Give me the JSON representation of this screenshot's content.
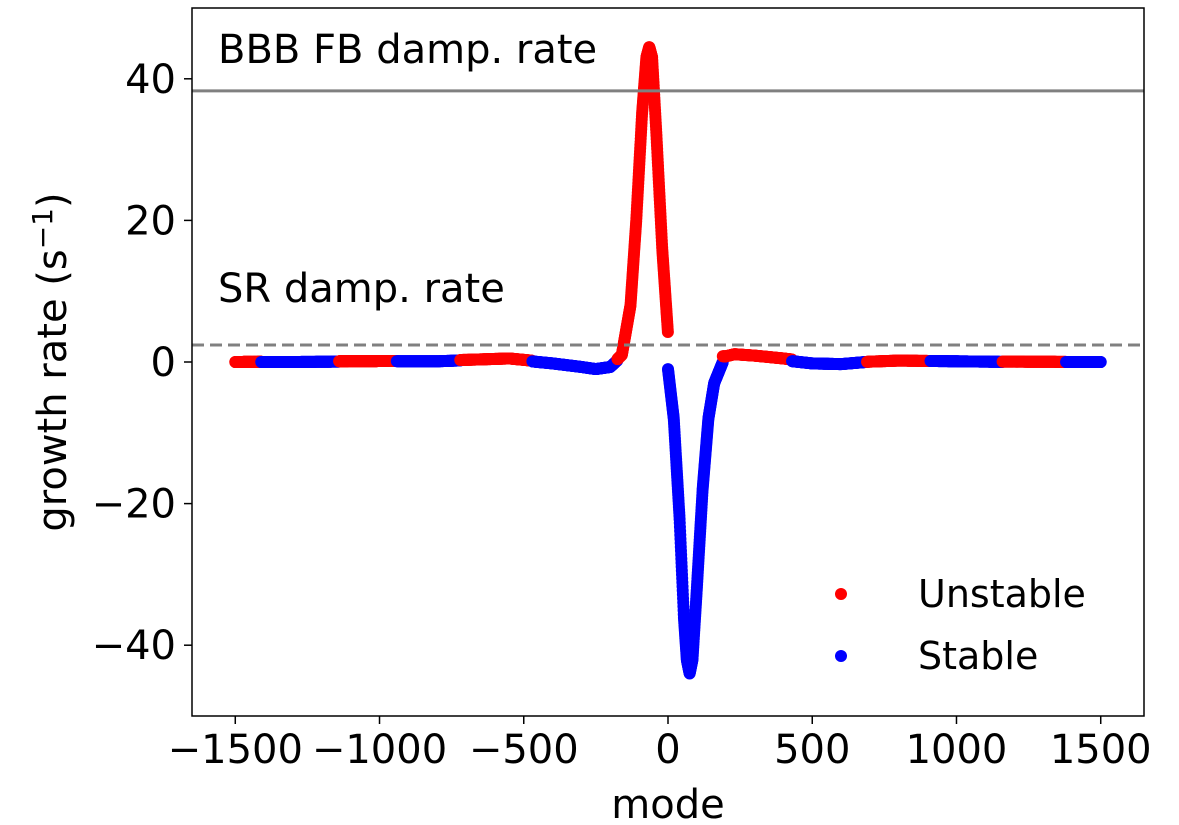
{
  "chart_data": {
    "type": "scatter",
    "xlabel": "mode",
    "ylabel": "growth rate (s",
    "ylabel_sup": "−1",
    "ylabel_close": ")",
    "xlim": [
      -1650,
      1650
    ],
    "ylim": [
      -50,
      50
    ],
    "x_ticks": [
      -1500,
      -1000,
      -500,
      0,
      500,
      1000,
      1500
    ],
    "x_tick_labels": [
      "−1500",
      "−1000",
      "−500",
      "0",
      "500",
      "1000",
      "1500"
    ],
    "y_ticks": [
      -40,
      -20,
      0,
      20,
      40
    ],
    "y_tick_labels": [
      "−40",
      "−20",
      "0",
      "20",
      "40"
    ],
    "grid": false,
    "legend_position": "bottom-right",
    "reference_lines": [
      {
        "y": 38.3,
        "style": "solid",
        "color": "#808080"
      },
      {
        "y": 2.4,
        "style": "dashed",
        "color": "#808080"
      }
    ],
    "annotations": [
      {
        "text": "BBB FB damp. rate",
        "x": -1550,
        "y": 44.5
      },
      {
        "text": "SR damp. rate",
        "x": -1550,
        "y": 10
      }
    ],
    "series": [
      {
        "name": "Unstable",
        "color": "#ff0000",
        "x_range": [
          -1500,
          1500
        ],
        "points_x": [
          -1500,
          -1200,
          -900,
          -700,
          -550,
          -450,
          -350,
          -250,
          -200,
          -160,
          -130,
          -110,
          -90,
          -75,
          -65,
          -55,
          -40,
          -20,
          0,
          20,
          200,
          230,
          300,
          400,
          500,
          600,
          700,
          800,
          900,
          1000,
          1200,
          1500
        ],
        "points_y": [
          0.0,
          0.1,
          0.15,
          0.3,
          0.5,
          0.1,
          -0.3,
          -0.8,
          -0.6,
          1.0,
          8.0,
          20.0,
          35.0,
          43.0,
          44.5,
          43.0,
          32.0,
          16.0,
          4.0,
          1.0,
          0.8,
          1.1,
          0.9,
          0.5,
          0.0,
          -0.2,
          0.05,
          0.2,
          0.15,
          0.1,
          0.05,
          0.0
        ]
      },
      {
        "name": "Stable",
        "color": "#0000ff",
        "x_range": [
          -1500,
          1500
        ],
        "points_x": [
          -1500,
          -1300,
          -1000,
          -800,
          -600,
          -500,
          -400,
          -300,
          -250,
          -200,
          -160,
          0,
          20,
          40,
          55,
          65,
          75,
          85,
          100,
          120,
          140,
          160,
          190,
          300,
          500,
          600,
          700,
          900,
          1200,
          1500
        ],
        "points_y": [
          0.0,
          0.0,
          0.1,
          0.1,
          0.4,
          0.2,
          -0.2,
          -0.7,
          -1.0,
          -0.7,
          0.8,
          -1.0,
          -8.0,
          -22.0,
          -36.0,
          -42.0,
          -44.0,
          -42.0,
          -32.0,
          -18.0,
          -8.0,
          -3.0,
          0.0,
          0.7,
          -0.2,
          -0.3,
          0.05,
          0.15,
          0.0,
          0.0
        ]
      }
    ],
    "segments": [
      {
        "series": "Unstable",
        "from": -1500,
        "to": -1410
      },
      {
        "series": "Stable",
        "from": -1410,
        "to": -1140
      },
      {
        "series": "Unstable",
        "from": -1140,
        "to": -940
      },
      {
        "series": "Stable",
        "from": -940,
        "to": -720
      },
      {
        "series": "Unstable",
        "from": -720,
        "to": -470
      },
      {
        "series": "Stable",
        "from": -470,
        "to": -175
      },
      {
        "series": "Unstable",
        "from": -175,
        "to": 0
      },
      {
        "series": "Stable",
        "from": 0,
        "to": 190
      },
      {
        "series": "Unstable",
        "from": 190,
        "to": 430
      },
      {
        "series": "Stable",
        "from": 430,
        "to": 690
      },
      {
        "series": "Unstable",
        "from": 690,
        "to": 910
      },
      {
        "series": "Stable",
        "from": 910,
        "to": 1160
      },
      {
        "series": "Unstable",
        "from": 1160,
        "to": 1380
      },
      {
        "series": "Stable",
        "from": 1380,
        "to": 1500
      }
    ]
  }
}
